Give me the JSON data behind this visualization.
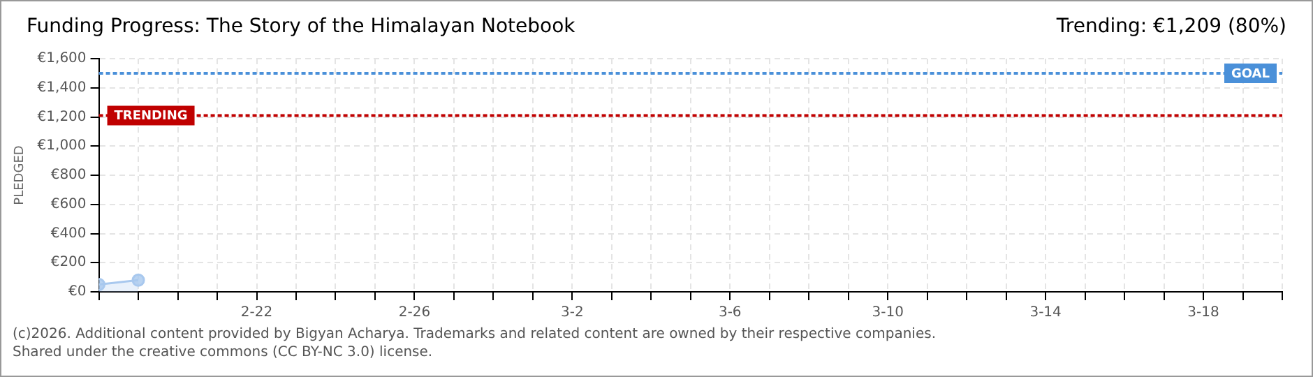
{
  "chart_data": {
    "type": "area",
    "title": "Funding Progress: The Story of the Himalayan Notebook",
    "subtitle": "Trending: €1,209 (80%)",
    "ylabel": "PLEDGED",
    "x": [
      "2026-02-18",
      "2026-02-19"
    ],
    "series": [
      {
        "color": "#a8c8ee",
        "values": [
          50,
          80
        ]
      }
    ],
    "xlim": [
      "2026-02-18",
      "2026-03-20"
    ],
    "xticks": [
      {
        "value": "2026-02-18",
        "label": null
      },
      {
        "value": "2026-02-19",
        "label": null
      },
      {
        "value": "2026-02-20",
        "label": null
      },
      {
        "value": "2026-02-21",
        "label": null
      },
      {
        "value": "2026-02-22",
        "label": "2-22"
      },
      {
        "value": "2026-02-23",
        "label": null
      },
      {
        "value": "2026-02-24",
        "label": null
      },
      {
        "value": "2026-02-25",
        "label": null
      },
      {
        "value": "2026-02-26",
        "label": "2-26"
      },
      {
        "value": "2026-02-27",
        "label": null
      },
      {
        "value": "2026-02-28",
        "label": null
      },
      {
        "value": "2026-03-01",
        "label": null
      },
      {
        "value": "2026-03-02",
        "label": "3-2"
      },
      {
        "value": "2026-03-03",
        "label": null
      },
      {
        "value": "2026-03-04",
        "label": null
      },
      {
        "value": "2026-03-05",
        "label": null
      },
      {
        "value": "2026-03-06",
        "label": "3-6"
      },
      {
        "value": "2026-03-07",
        "label": null
      },
      {
        "value": "2026-03-08",
        "label": null
      },
      {
        "value": "2026-03-09",
        "label": null
      },
      {
        "value": "2026-03-10",
        "label": "3-10"
      },
      {
        "value": "2026-03-11",
        "label": null
      },
      {
        "value": "2026-03-12",
        "label": null
      },
      {
        "value": "2026-03-13",
        "label": null
      },
      {
        "value": "2026-03-14",
        "label": "3-14"
      },
      {
        "value": "2026-03-15",
        "label": null
      },
      {
        "value": "2026-03-16",
        "label": null
      },
      {
        "value": "2026-03-17",
        "label": null
      },
      {
        "value": "2026-03-18",
        "label": "3-18"
      },
      {
        "value": "2026-03-19",
        "label": null
      },
      {
        "value": "2026-03-20",
        "label": null
      }
    ],
    "ylim": [
      0,
      1600
    ],
    "yticks": [
      {
        "value": 0,
        "label": "€0"
      },
      {
        "value": 200,
        "label": "€200"
      },
      {
        "value": 400,
        "label": "€400"
      },
      {
        "value": 600,
        "label": "€600"
      },
      {
        "value": 800,
        "label": "€800"
      },
      {
        "value": 1000,
        "label": "€1,000"
      },
      {
        "value": 1200,
        "label": "€1,200"
      },
      {
        "value": 1400,
        "label": "€1,400"
      },
      {
        "value": 1600,
        "label": "€1,600"
      }
    ],
    "ref_lines": [
      {
        "axis": "y",
        "value": 1500,
        "label": "GOAL",
        "color": "#4a90d9",
        "line_style": "dotted"
      },
      {
        "axis": "y",
        "value": 1209,
        "label": "TRENDING",
        "color": "#c00000",
        "line_style": "dotted"
      }
    ],
    "grid": true,
    "marker": "circle",
    "legend": false,
    "annotations": [
      "(c)2026. Additional content provided by Bigyan Acharya. Trademarks and related content are owned by their respective companies.",
      "Shared under the creative commons (CC BY-NC 3.0) license."
    ]
  }
}
